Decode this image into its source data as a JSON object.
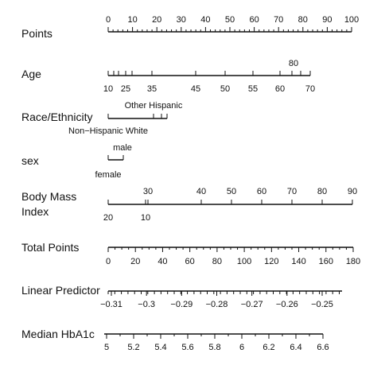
{
  "chart_data": {
    "type": "nomogram",
    "rows": [
      {
        "label": "Points",
        "scale_min": 0,
        "scale_max": 100,
        "major": [
          0,
          10,
          20,
          30,
          40,
          50,
          60,
          70,
          80,
          90,
          100
        ],
        "minor_step": 2,
        "labels": [
          {
            "text": "0",
            "value": 0,
            "side": "above"
          },
          {
            "text": "10",
            "value": 10,
            "side": "above"
          },
          {
            "text": "20",
            "value": 20,
            "side": "above"
          },
          {
            "text": "30",
            "value": 30,
            "side": "above"
          },
          {
            "text": "40",
            "value": 40,
            "side": "above"
          },
          {
            "text": "50",
            "value": 50,
            "side": "above"
          },
          {
            "text": "60",
            "value": 60,
            "side": "above"
          },
          {
            "text": "70",
            "value": 70,
            "side": "above"
          },
          {
            "text": "80",
            "value": 80,
            "side": "above"
          },
          {
            "text": "90",
            "value": 90,
            "side": "above"
          },
          {
            "text": "100",
            "value": 100,
            "side": "above"
          }
        ]
      },
      {
        "label": "Age",
        "scale_min": 10,
        "scale_max": 70,
        "major": [
          10,
          15,
          20,
          25,
          30,
          35,
          45,
          50,
          55,
          60,
          65,
          70
        ],
        "minor_step": null,
        "labels": [
          {
            "text": "10",
            "value": 10,
            "side": "below"
          },
          {
            "text": "25",
            "value": 25,
            "side": "below"
          },
          {
            "text": "35",
            "value": 35,
            "side": "below"
          },
          {
            "text": "45",
            "value": 45,
            "side": "below"
          },
          {
            "text": "50",
            "value": 50,
            "side": "below"
          },
          {
            "text": "55",
            "value": 55,
            "side": "below"
          },
          {
            "text": "60",
            "value": 60,
            "side": "below"
          },
          {
            "text": "70",
            "value": 70,
            "side": "below"
          },
          {
            "text": "80",
            "value": 80,
            "side": "above"
          }
        ]
      },
      {
        "label": "Race/Ethnicity",
        "categories": [
          "Non−Hispanic White",
          "Other Hispanic"
        ],
        "labels": [
          {
            "text": "Other Hispanic",
            "side": "above"
          },
          {
            "text": "Non−Hispanic White",
            "side": "below"
          }
        ]
      },
      {
        "label": "sex",
        "categories": [
          "female",
          "male"
        ],
        "labels": [
          {
            "text": "male",
            "side": "above"
          },
          {
            "text": "female",
            "side": "below"
          }
        ]
      },
      {
        "label": "Body Mass Index",
        "label_lines": [
          "Body Mass",
          "Index"
        ],
        "labels": [
          {
            "text": "20",
            "value": 20,
            "side": "below"
          },
          {
            "text": "10",
            "value": 10,
            "side": "below"
          },
          {
            "text": "30",
            "value": 30,
            "side": "above"
          },
          {
            "text": "40",
            "value": 40,
            "side": "above"
          },
          {
            "text": "50",
            "value": 50,
            "side": "above"
          },
          {
            "text": "60",
            "value": 60,
            "side": "above"
          },
          {
            "text": "70",
            "value": 70,
            "side": "above"
          },
          {
            "text": "80",
            "value": 80,
            "side": "above"
          },
          {
            "text": "90",
            "value": 90,
            "side": "above"
          }
        ]
      },
      {
        "label": "Total Points",
        "scale_min": 0,
        "scale_max": 180,
        "major": [
          0,
          20,
          40,
          60,
          80,
          100,
          120,
          140,
          160,
          180
        ],
        "minor_step": 5,
        "labels": [
          {
            "text": "0",
            "value": 0,
            "side": "below"
          },
          {
            "text": "20",
            "value": 20,
            "side": "below"
          },
          {
            "text": "40",
            "value": 40,
            "side": "below"
          },
          {
            "text": "60",
            "value": 60,
            "side": "below"
          },
          {
            "text": "80",
            "value": 80,
            "side": "below"
          },
          {
            "text": "100",
            "value": 100,
            "side": "below"
          },
          {
            "text": "120",
            "value": 120,
            "side": "below"
          },
          {
            "text": "140",
            "value": 140,
            "side": "below"
          },
          {
            "text": "160",
            "value": 160,
            "side": "below"
          },
          {
            "text": "180",
            "value": 180,
            "side": "below"
          }
        ]
      },
      {
        "label": "Linear Predictor",
        "scale_min": -0.31,
        "scale_max": -0.25,
        "labels": [
          {
            "text": "−0.31",
            "value": -0.31,
            "side": "below"
          },
          {
            "text": "−0.3",
            "value": -0.3,
            "side": "below"
          },
          {
            "text": "−0.29",
            "value": -0.29,
            "side": "below"
          },
          {
            "text": "−0.28",
            "value": -0.28,
            "side": "below"
          },
          {
            "text": "−0.27",
            "value": -0.27,
            "side": "below"
          },
          {
            "text": "−0.26",
            "value": -0.26,
            "side": "below"
          },
          {
            "text": "−0.25",
            "value": -0.25,
            "side": "below"
          }
        ]
      },
      {
        "label": "Median HbA1c",
        "scale_min": 5,
        "scale_max": 6.6,
        "labels": [
          {
            "text": "5",
            "value": 5,
            "side": "below"
          },
          {
            "text": "5.2",
            "value": 5.2,
            "side": "below"
          },
          {
            "text": "5.4",
            "value": 5.4,
            "side": "below"
          },
          {
            "text": "5.6",
            "value": 5.6,
            "side": "below"
          },
          {
            "text": "5.8",
            "value": 5.8,
            "side": "below"
          },
          {
            "text": "6",
            "value": 6,
            "side": "below"
          },
          {
            "text": "6.2",
            "value": 6.2,
            "side": "below"
          },
          {
            "text": "6.4",
            "value": 6.4,
            "side": "below"
          },
          {
            "text": "6.6",
            "value": 6.6,
            "side": "below"
          }
        ]
      }
    ]
  }
}
